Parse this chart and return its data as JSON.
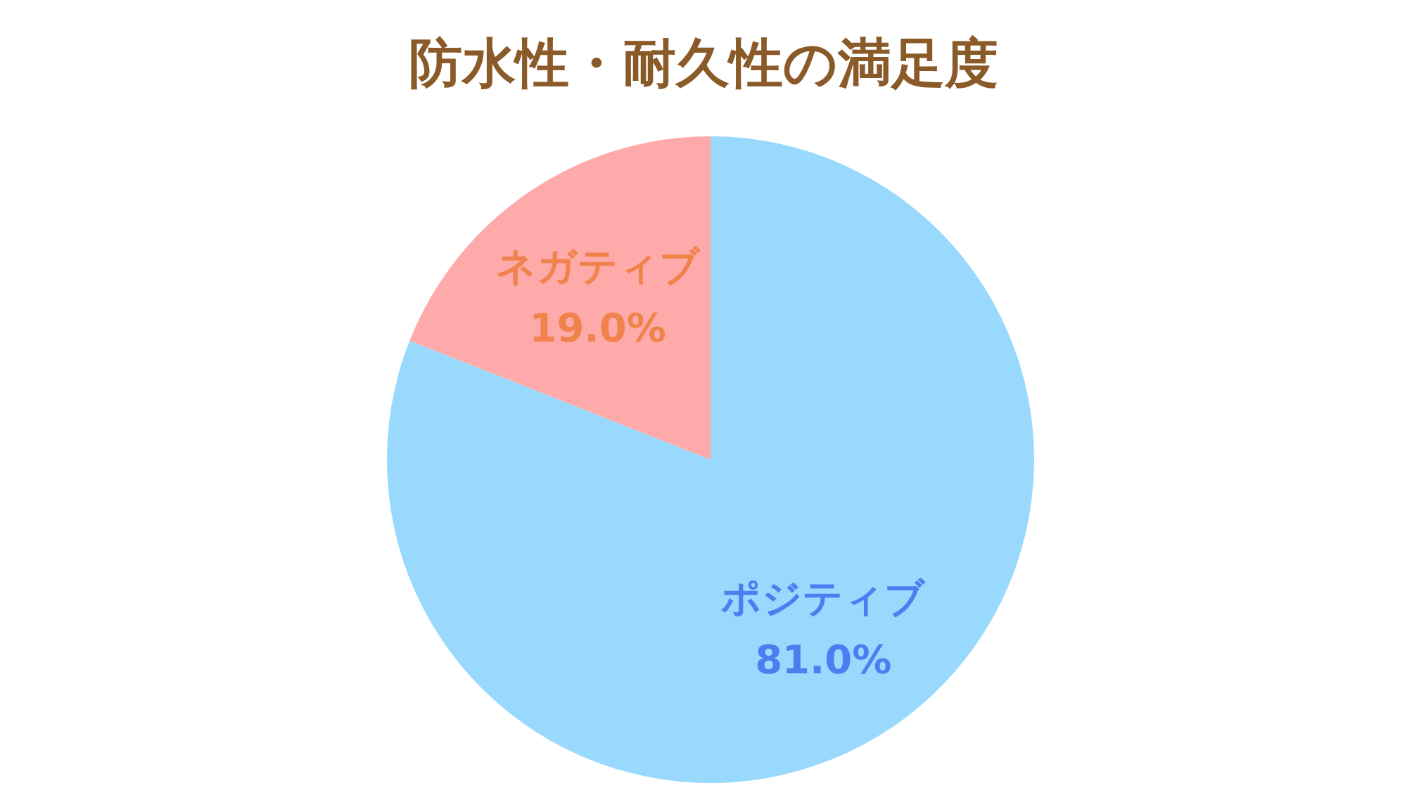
{
  "chart_data": {
    "type": "pie",
    "title": "防水性・耐久性の満足度",
    "categories": [
      "ポジティブ",
      "ネガティブ"
    ],
    "values": [
      81.0,
      19.0
    ],
    "colors": [
      "#99d9fd",
      "#ffaaaa"
    ],
    "value_labels": [
      "81.0%",
      "19.0%"
    ],
    "legend": false
  }
}
